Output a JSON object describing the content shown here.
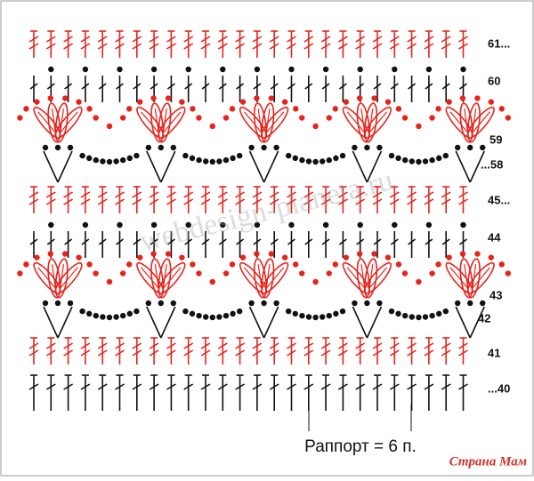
{
  "rows": [
    "61...",
    "60",
    "59",
    "...58",
    "45...",
    "44",
    "43",
    "42",
    "41",
    "...40"
  ],
  "rapport": "Раппорт = 6 п.",
  "watermark": "webdesign-planeta.ru",
  "logo": "Страна Мам"
}
